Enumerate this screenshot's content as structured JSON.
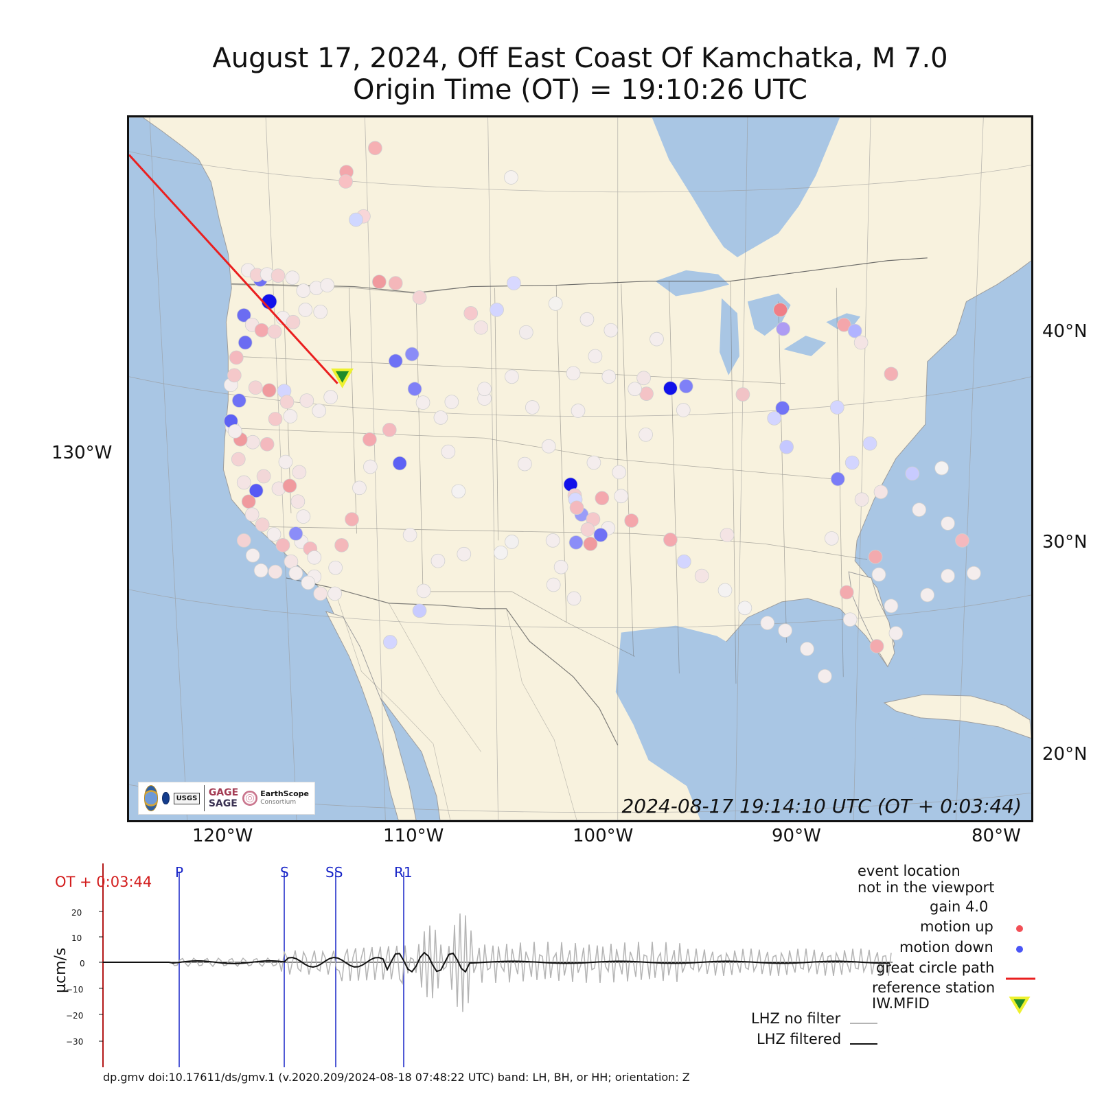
{
  "title": {
    "line1": "August 17, 2024, Off East Coast Of Kamchatka, M 7.0",
    "line2": "Origin Time (OT) = 19:10:26 UTC"
  },
  "map": {
    "time_label": "2024-08-17 19:14:10 UTC (OT + 0:03:44)",
    "lat_labels": [
      "40°N",
      "30°N",
      "20°N"
    ],
    "lon_labels": [
      "130°W",
      "120°W",
      "110°W",
      "100°W",
      "90°W",
      "80°W"
    ],
    "colors": {
      "land": "#f8f2de",
      "water": "#a9c6e4",
      "motion_up": "#f48b95",
      "motion_down": "#4a55f6",
      "great_circle": "#ea1f1f",
      "reference_station": "#1f8b2b",
      "reference_station_outline": "#eef12f"
    },
    "logo": {
      "gage": "GAGE",
      "sage": "SAGE",
      "usgs": "USGS",
      "earthscope": "EarthScope",
      "consortium": "Consortium"
    }
  },
  "seismogram": {
    "label": "OT + 0:03:44",
    "y_axis_label": "µcm/s",
    "y_ticks": [
      "20",
      "10",
      "0",
      "−10",
      "−20",
      "−30"
    ],
    "phases": [
      "P",
      "S",
      "SS",
      "R1"
    ],
    "legend": {
      "event_location_line1": "event location",
      "event_location_line2": "not in the viewport",
      "gain": "gain  4.0",
      "motion_up": "motion up",
      "motion_down": "motion down",
      "great_circle_path": "great circle path",
      "reference_station_line1": "reference station",
      "reference_station_line2": "IW.MFID",
      "lhz_no_filter": "LHZ no filter",
      "lhz_filtered": "LHZ filtered"
    },
    "footer": "dp.gmv doi:10.17611/ds/gmv.1 (v.2020.209/2024-08-18 07:48:22 UTC) band: LH, BH, or HH; orientation: Z"
  }
}
